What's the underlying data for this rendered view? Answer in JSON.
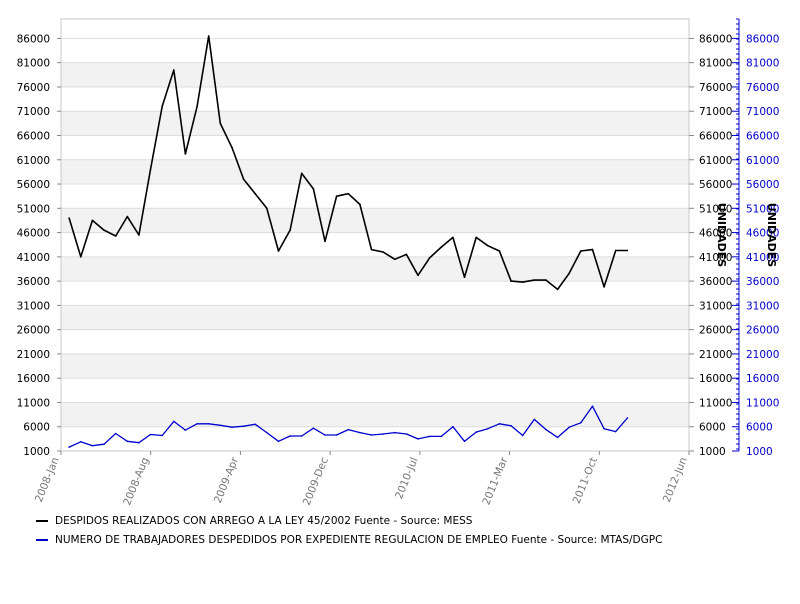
{
  "chart_data": {
    "type": "line",
    "title": "",
    "xlabel": "",
    "ylabel": "",
    "y2label": "UNIDADES",
    "ylim": [
      1000,
      90000
    ],
    "yticks": [
      1000,
      6000,
      11000,
      16000,
      21000,
      26000,
      31000,
      36000,
      41000,
      46000,
      51000,
      56000,
      61000,
      66000,
      71000,
      76000,
      81000,
      86000
    ],
    "ytick_labels": [
      "1000",
      "6000",
      "11000",
      "16000",
      "21000",
      "26000",
      "31000",
      "36000",
      "41000",
      "46000",
      "51000",
      "56000",
      "61000",
      "66000",
      "71000",
      "76000",
      "81000",
      "86000"
    ],
    "xtick_labels": [
      "2008-Jan",
      "2008-Aug",
      "2009-Apr",
      "2009-Dec",
      "2010-Jul",
      "2011-Mar",
      "2011-Oct",
      "2012-Jun"
    ],
    "x_start": "2008-Jan",
    "x_months_span": 53,
    "grid": true,
    "legend_position": "bottom",
    "series": [
      {
        "name": "DESPIDOS REALIZADOS CON ARREGO A LA LEY 45/2002  Fuente - Source: MESS",
        "color": "#000000",
        "values": [
          49000,
          41000,
          48500,
          46500,
          45300,
          49300,
          45500,
          59000,
          72000,
          79500,
          62200,
          72000,
          86500,
          68500,
          63500,
          57000,
          54000,
          51000,
          42200,
          46500,
          58200,
          55000,
          44200,
          53500,
          54000,
          51800,
          42500,
          42000,
          40500,
          41500,
          37200,
          40800,
          43000,
          45000,
          36800,
          45000,
          43300,
          42200,
          36000,
          35800,
          36200,
          36200,
          34300,
          37600,
          42200,
          42500,
          34800,
          42300,
          42300
        ]
      },
      {
        "name": "NUMERO DE TRABAJADORES DESPEDIDOS POR EXPEDIENTE REGULACION DE EMPLEO  Fuente - Source: MTAS/DGPC",
        "color": "#0000cc",
        "values": [
          1800,
          2900,
          2100,
          2400,
          4600,
          3000,
          2700,
          4400,
          4200,
          7100,
          5300,
          6600,
          6600,
          6300,
          5900,
          6100,
          6500,
          4800,
          3000,
          4100,
          4100,
          5700,
          4300,
          4300,
          5400,
          4800,
          4300,
          4500,
          4800,
          4500,
          3500,
          4000,
          4000,
          6000,
          3000,
          4900,
          5600,
          6600,
          6200,
          4200,
          7500,
          5400,
          3800,
          5900,
          6800,
          10200,
          5600,
          5000,
          7800
        ]
      }
    ]
  }
}
